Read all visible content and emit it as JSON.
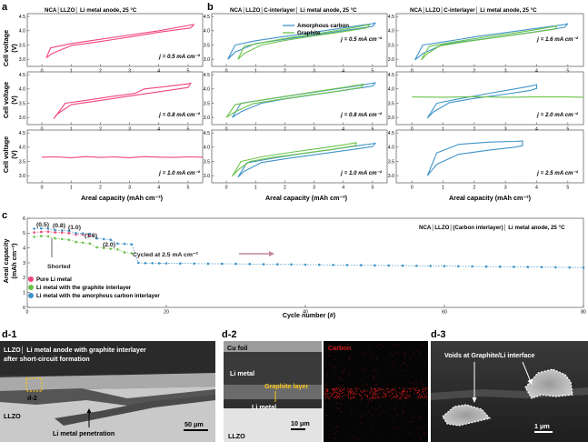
{
  "panel_labels": {
    "a": "a",
    "b": "b",
    "c": "c",
    "d1": "d-1",
    "d2": "d-2",
    "d3": "d-3"
  },
  "titles": {
    "a": "NCA│LLZO│ Li metal anode, 25 °C",
    "b1": "NCA│LLZO│C-interlayer│ Li metal anode, 25 °C",
    "b2": "NCA│LLZO│C-interlayer│ Li metal anode, 25 °C",
    "c": "NCA│LLZO│(Carbon interlayer)│ Li metal anode, 25 °C"
  },
  "axis_labels": {
    "cell_voltage": "Cell voltage",
    "cell_voltage_unit": "(V)",
    "areal_capacity": "Areal capacity (mAh cm⁻²)",
    "c_ylabel": "Areal capacity",
    "c_yunit": "(mAh cm⁻²)",
    "c_xlabel": "Cycle number (#)"
  },
  "voltage_ticks": [
    "4.5",
    "4.0",
    "3.5",
    "3.0"
  ],
  "capacity_ticks": [
    "0",
    "1",
    "2",
    "3",
    "4",
    "5"
  ],
  "c_yticks": [
    "6",
    "5",
    "4",
    "3",
    "2",
    "1",
    "0"
  ],
  "c_xticks": [
    "0",
    "20",
    "40",
    "60",
    "80"
  ],
  "colors": {
    "pure": "#f0457a",
    "graphite": "#6cc24a",
    "amorphous": "#3f93c8",
    "arrow": "#c0879a",
    "gold": "#f5c518",
    "carbon_map": "#d61a1a"
  },
  "chart_data": [
    {
      "type": "line",
      "id": "a1",
      "title": "NCA│LLZO│ Li metal anode, 25 °C",
      "current_density": "j = 0.5 mA cm⁻²",
      "xlabel": "",
      "ylabel": "Cell voltage (V)",
      "xlim": [
        -0.5,
        5.5
      ],
      "ylim": [
        2.75,
        4.6
      ],
      "series": [
        {
          "name": "Pure Li metal",
          "color": "#f0457a",
          "x": [
            0.15,
            0.3,
            1,
            2,
            3,
            4,
            5.1,
            5.2,
            5.1,
            4,
            3,
            2,
            1,
            0.35,
            0.15
          ],
          "y": [
            3.05,
            3.4,
            3.55,
            3.7,
            3.85,
            4.0,
            4.2,
            4.22,
            4.1,
            3.95,
            3.78,
            3.62,
            3.48,
            3.2,
            3.05
          ]
        }
      ]
    },
    {
      "type": "line",
      "id": "a2",
      "title": "",
      "current_density": "j = 0.8 mA cm⁻²",
      "xlim": [
        -0.5,
        5.5
      ],
      "ylim": [
        2.75,
        4.6
      ],
      "series": [
        {
          "name": "Pure Li metal",
          "color": "#f0457a",
          "x": [
            0.4,
            0.8,
            1.5,
            2.5,
            3.2,
            3.5,
            4.2,
            5.0,
            5.1,
            5.0,
            4,
            3,
            2,
            1,
            0.5,
            0.4
          ],
          "y": [
            2.95,
            3.5,
            3.6,
            3.75,
            3.85,
            4.0,
            4.08,
            4.18,
            4.2,
            4.05,
            3.9,
            3.75,
            3.6,
            3.45,
            3.1,
            2.95
          ]
        }
      ]
    },
    {
      "type": "line",
      "id": "a3",
      "title": "",
      "current_density": "j = 1.0 mA cm⁻²",
      "xlabel": "Areal capacity (mAh cm⁻²)",
      "xlim": [
        -0.5,
        5.5
      ],
      "ylim": [
        2.75,
        4.6
      ],
      "series": [
        {
          "name": "Pure Li metal (shorted)",
          "color": "#f0457a",
          "x": [
            0,
            0.5,
            1,
            1.5,
            2,
            2.5,
            3,
            3.5,
            4,
            4.5,
            5,
            5.5
          ],
          "y": [
            3.65,
            3.66,
            3.63,
            3.67,
            3.64,
            3.66,
            3.63,
            3.67,
            3.65,
            3.64,
            3.66,
            3.65
          ]
        }
      ]
    },
    {
      "type": "line",
      "id": "b1",
      "title": "NCA│LLZO│C-interlayer│ Li metal anode, 25 °C",
      "current_density": "j = 0.5 mA cm⁻²",
      "legend": [
        "Amorphous carbon",
        "Graphite"
      ],
      "xlim": [
        -0.5,
        5.5
      ],
      "ylim": [
        2.75,
        4.6
      ],
      "series": [
        {
          "name": "Amorphous carbon",
          "color": "#3f93c8",
          "x": [
            0.05,
            0.3,
            1,
            2,
            3,
            4,
            5.0,
            5.1,
            5.0,
            4,
            3,
            2,
            1,
            0.3,
            0.05
          ],
          "y": [
            3.0,
            3.5,
            3.65,
            3.8,
            3.95,
            4.1,
            4.25,
            4.28,
            4.15,
            4.0,
            3.85,
            3.7,
            3.55,
            3.25,
            3.0
          ]
        },
        {
          "name": "Graphite",
          "color": "#6cc24a",
          "x": [
            0.4,
            0.6,
            1.3,
            2.3,
            3.3,
            4.2,
            4.8,
            4.9,
            4.8,
            4,
            3,
            2,
            1.2,
            0.6,
            0.4
          ],
          "y": [
            3.0,
            3.45,
            3.6,
            3.78,
            3.93,
            4.08,
            4.2,
            4.22,
            4.1,
            3.97,
            3.82,
            3.66,
            3.5,
            3.2,
            3.0
          ]
        }
      ]
    },
    {
      "type": "line",
      "id": "b2",
      "title": "",
      "current_density": "j = 0.8 mA cm⁻²",
      "xlim": [
        -0.5,
        5.5
      ],
      "ylim": [
        2.75,
        4.6
      ],
      "series": [
        {
          "name": "Amorphous carbon",
          "color": "#3f93c8",
          "x": [
            0.2,
            0.5,
            1.3,
            2.3,
            3.3,
            4.3,
            5.0,
            5.1,
            5.0,
            4,
            3,
            2,
            1.2,
            0.5,
            0.2
          ],
          "y": [
            3.0,
            3.5,
            3.62,
            3.78,
            3.93,
            4.08,
            4.2,
            4.22,
            4.1,
            3.95,
            3.8,
            3.65,
            3.5,
            3.2,
            3.0
          ]
        },
        {
          "name": "Graphite",
          "color": "#6cc24a",
          "x": [
            0.0,
            0.3,
            1,
            2,
            3,
            4,
            4.6,
            4.7,
            4.6,
            3.8,
            2.8,
            1.8,
            0.9,
            0.3,
            0.0
          ],
          "y": [
            3.0,
            3.45,
            3.58,
            3.74,
            3.9,
            4.05,
            4.15,
            4.17,
            4.05,
            3.92,
            3.78,
            3.63,
            3.48,
            3.2,
            3.0
          ]
        }
      ]
    },
    {
      "type": "line",
      "id": "b3",
      "title": "",
      "current_density": "j = 1.0 mA cm⁻²",
      "xlabel": "Areal capacity (mAh cm⁻²)",
      "xlim": [
        -0.5,
        5.5
      ],
      "ylim": [
        2.75,
        4.6
      ],
      "series": [
        {
          "name": "Amorphous carbon",
          "color": "#3f93c8",
          "x": [
            0.4,
            0.7,
            1.5,
            2.5,
            3.5,
            4.5,
            5.0,
            5.1,
            5.0,
            4.2,
            3.2,
            2.2,
            1.2,
            0.6,
            0.4
          ],
          "y": [
            2.95,
            3.45,
            3.6,
            3.76,
            3.9,
            4.05,
            4.12,
            4.14,
            4.02,
            3.9,
            3.76,
            3.62,
            3.46,
            3.15,
            2.95
          ]
        },
        {
          "name": "Graphite",
          "color": "#6cc24a",
          "x": [
            0.2,
            0.5,
            1.2,
            2.2,
            3.2,
            4.0,
            4.4,
            4.45,
            4.4,
            3.6,
            2.6,
            1.6,
            0.8,
            0.4,
            0.2
          ],
          "y": [
            2.98,
            3.5,
            3.66,
            3.82,
            3.96,
            4.08,
            4.15,
            4.16,
            4.05,
            3.92,
            3.78,
            3.64,
            3.5,
            3.2,
            2.98
          ]
        }
      ]
    },
    {
      "type": "line",
      "id": "b4",
      "title": "NCA│LLZO│C-interlayer│ Li metal anode, 25 °C",
      "current_density": "j = 1.6 mA cm⁻²",
      "xlim": [
        -0.5,
        5.5
      ],
      "ylim": [
        2.75,
        4.6
      ],
      "series": [
        {
          "name": "Amorphous carbon",
          "color": "#3f93c8",
          "x": [
            0.1,
            0.35,
            1.1,
            2.1,
            3.1,
            4.1,
            4.9,
            5.0,
            4.9,
            4,
            3,
            2,
            1,
            0.35,
            0.1
          ],
          "y": [
            2.98,
            3.5,
            3.62,
            3.8,
            3.95,
            4.1,
            4.22,
            4.25,
            4.12,
            3.97,
            3.82,
            3.67,
            3.52,
            3.2,
            2.98
          ]
        },
        {
          "name": "Graphite",
          "color": "#6cc24a",
          "x": [
            0.3,
            0.55,
            1.3,
            2.3,
            3.3,
            4.1,
            4.6,
            4.65,
            4.6,
            3.8,
            2.8,
            1.8,
            0.9,
            0.5,
            0.3
          ],
          "y": [
            2.98,
            3.45,
            3.6,
            3.77,
            3.92,
            4.06,
            4.16,
            4.18,
            4.06,
            3.93,
            3.78,
            3.63,
            3.47,
            3.2,
            2.98
          ]
        }
      ]
    },
    {
      "type": "line",
      "id": "b5",
      "title": "",
      "current_density": "j = 2.0 mA cm⁻²",
      "xlim": [
        -0.5,
        5.5
      ],
      "ylim": [
        2.75,
        4.6
      ],
      "series": [
        {
          "name": "Amorphous carbon",
          "color": "#3f93c8",
          "x": [
            0.5,
            0.8,
            1.5,
            2.5,
            3.3,
            3.8,
            4.0,
            4.0,
            3.8,
            3.0,
            2.0,
            1.2,
            0.7,
            0.5
          ],
          "y": [
            2.98,
            3.5,
            3.65,
            3.85,
            4.0,
            4.1,
            4.15,
            4.02,
            3.95,
            3.82,
            3.67,
            3.52,
            3.2,
            2.98
          ]
        },
        {
          "name": "Graphite (shorted)",
          "color": "#6cc24a",
          "x": [
            0,
            1,
            2,
            3,
            4,
            5,
            5.5
          ],
          "y": [
            3.72,
            3.71,
            3.73,
            3.71,
            3.72,
            3.72,
            3.71
          ]
        }
      ]
    },
    {
      "type": "line",
      "id": "b6",
      "title": "",
      "current_density": "j = 2.5 mA cm⁻²",
      "xlabel": "Areal capacity (mAh cm⁻²)",
      "xlim": [
        -0.5,
        5.5
      ],
      "ylim": [
        2.75,
        4.6
      ],
      "series": [
        {
          "name": "Amorphous carbon",
          "color": "#3f93c8",
          "x": [
            0.5,
            0.8,
            1.5,
            2.5,
            3.3,
            3.55,
            3.55,
            3.3,
            2.5,
            1.5,
            0.8,
            0.5
          ],
          "y": [
            3.0,
            3.8,
            4.1,
            4.18,
            4.2,
            4.22,
            4.05,
            4.0,
            3.9,
            3.75,
            3.4,
            3.0
          ]
        }
      ]
    },
    {
      "type": "scatter",
      "id": "c",
      "title": "NCA│LLZO│(Carbon interlayer)│ Li metal anode, 25 °C",
      "xlabel": "Cycle number (#)",
      "ylabel": "Areal capacity (mAh cm⁻²)",
      "xlim": [
        0,
        80
      ],
      "ylim": [
        0,
        6
      ],
      "legend": [
        "Pure Li metal",
        "Li metal with the graphite interlayer",
        "Li metal with the amorphous carbon interlayer"
      ],
      "annotations": {
        "rates": [
          "(0.5)",
          "(0.8)",
          "(1.0)",
          "(1.6)",
          "(2.0)"
        ],
        "shorted": "Shorted",
        "cycled": "Cycled at 2.5 mA cm⁻²"
      },
      "series": [
        {
          "name": "Pure Li metal",
          "color": "#f0457a",
          "x": [
            1,
            2,
            3,
            4,
            5,
            6,
            7,
            8,
            9
          ],
          "y": [
            5.05,
            5.08,
            5.1,
            5.05,
            5.04,
            5.0,
            4.9,
            4.9,
            4.85
          ]
        },
        {
          "name": "Li metal with the graphite interlayer",
          "color": "#6cc24a",
          "x": [
            1,
            2,
            3,
            4,
            5,
            6,
            7,
            8,
            9,
            10,
            11,
            12,
            13,
            14,
            15
          ],
          "y": [
            4.75,
            4.8,
            4.78,
            4.65,
            4.6,
            4.55,
            4.4,
            4.35,
            4.3,
            4.05,
            4.0,
            3.95,
            3.9,
            3.7,
            3.65
          ]
        },
        {
          "name": "Li metal with the amorphous carbon interlayer",
          "color": "#3f93c8",
          "x": [
            1,
            2,
            3,
            4,
            5,
            6,
            7,
            8,
            9,
            10,
            11,
            12,
            13,
            14,
            15,
            16,
            17,
            18,
            19,
            20,
            22,
            24,
            26,
            28,
            30,
            32,
            34,
            36,
            38,
            40,
            42,
            44,
            46,
            48,
            50,
            52,
            54,
            56,
            58,
            60,
            62,
            64,
            66,
            68,
            70,
            72,
            74,
            76,
            78,
            80
          ],
          "y": [
            5.3,
            5.32,
            5.3,
            5.2,
            5.18,
            5.15,
            5.0,
            4.98,
            4.95,
            4.65,
            4.6,
            4.55,
            4.3,
            4.28,
            4.25,
            3.0,
            2.98,
            2.98,
            2.97,
            2.97,
            2.96,
            2.95,
            2.94,
            2.94,
            2.93,
            2.92,
            2.91,
            2.9,
            2.89,
            2.88,
            2.87,
            2.86,
            2.85,
            2.84,
            2.83,
            2.82,
            2.81,
            2.8,
            2.79,
            2.78,
            2.77,
            2.76,
            2.75,
            2.74,
            2.73,
            2.72,
            2.71,
            2.7,
            2.69,
            2.68
          ]
        }
      ]
    }
  ],
  "images": {
    "d1": {
      "caption_line1": "LLZO│ Li metal anode with graphite interlayer",
      "caption_line2": "after short-circuit formation",
      "inset_label": "d-2",
      "llzo": "LLZO",
      "penetration": "Li metal penetration",
      "scale": "50 μm"
    },
    "d2": {
      "cu_foil": "Cu foil",
      "li_metal": "Li metal",
      "graphite_layer": "Graphite layer",
      "li_metal_lower": "Li metal",
      "llzo": "LLZO",
      "scale": "10 μm",
      "carbon_label": "Carbon"
    },
    "d3": {
      "voids": "Voids at Graphite/Li interface",
      "scale": "1 μm"
    }
  }
}
